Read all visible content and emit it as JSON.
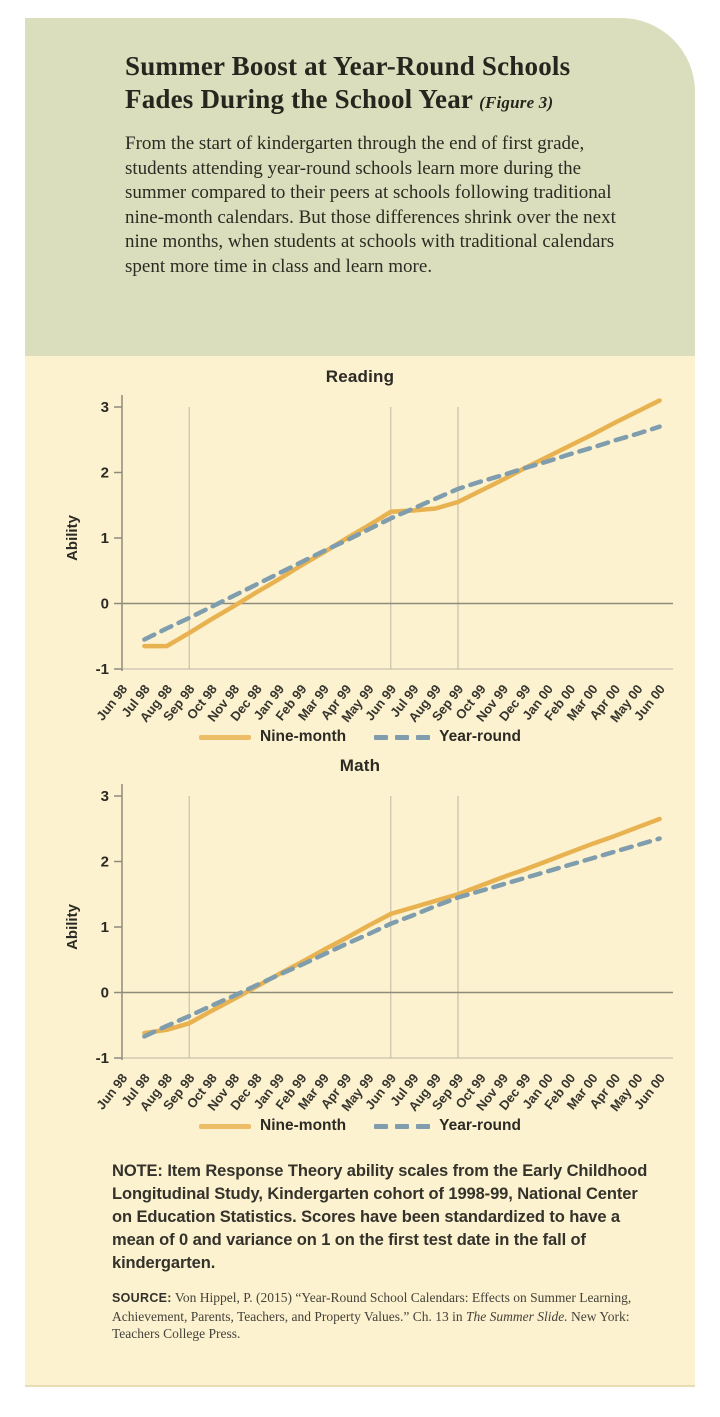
{
  "header": {
    "title": "Summer Boost at Year-Round Schools Fades During the School Year",
    "figure_tag": "(Figure 3)",
    "description": "From the start of kindergarten through the end of first grade, students attending year-round schools learn more during the summer compared to their peers at schools following traditional nine-month calendars. But those differences shrink over the next nine months, when students at schools with traditional calendars spent more time in class and learn more."
  },
  "chart_data": [
    {
      "type": "line",
      "title": "Reading",
      "ylabel": "Ability",
      "ylim": [
        -1,
        3
      ],
      "yticks": [
        3,
        2,
        1,
        0,
        -1
      ],
      "grid": "vertical-at-term-boundaries",
      "gridlines": [
        "Sep 98",
        "Jun 99",
        "Sep 99"
      ],
      "zero_line": true,
      "legend_position": "bottom",
      "categories": [
        "Jun 98",
        "Jul 98",
        "Aug 98",
        "Sep 98",
        "Oct 98",
        "Nov 98",
        "Dec 98",
        "Jan 99",
        "Feb 99",
        "Mar 99",
        "Apr 99",
        "May 99",
        "Jun 99",
        "Jul 99",
        "Aug 99",
        "Sep 99",
        "Oct 99",
        "Nov 99",
        "Dec 99",
        "Jan 00",
        "Feb 00",
        "Mar 00",
        "Apr 00",
        "May 00",
        "Jun 00"
      ],
      "series": [
        {
          "name": "Nine-month",
          "style": "solid",
          "color": "#e9b251",
          "values": [
            null,
            -0.65,
            -0.65,
            -0.45,
            -0.24,
            -0.04,
            0.17,
            0.37,
            0.58,
            0.78,
            0.99,
            1.19,
            1.4,
            1.42,
            1.45,
            1.55,
            1.72,
            1.89,
            2.07,
            2.24,
            2.41,
            2.58,
            2.76,
            2.93,
            3.1
          ]
        },
        {
          "name": "Year-round",
          "style": "dashed",
          "color": "#7f9dad",
          "values": [
            null,
            -0.55,
            -0.38,
            -0.22,
            -0.05,
            0.12,
            0.29,
            0.46,
            0.63,
            0.8,
            0.96,
            1.13,
            1.3,
            1.45,
            1.6,
            1.75,
            1.86,
            1.96,
            2.07,
            2.17,
            2.28,
            2.38,
            2.49,
            2.59,
            2.7
          ]
        }
      ]
    },
    {
      "type": "line",
      "title": "Math",
      "ylabel": "Ability",
      "ylim": [
        -1,
        3
      ],
      "yticks": [
        3,
        2,
        1,
        0,
        -1
      ],
      "grid": "vertical-at-term-boundaries",
      "gridlines": [
        "Sep 98",
        "Jun 99",
        "Sep 99"
      ],
      "zero_line": true,
      "legend_position": "bottom",
      "categories": [
        "Jun 98",
        "Jul 98",
        "Aug 98",
        "Sep 98",
        "Oct 98",
        "Nov 98",
        "Dec 98",
        "Jan 99",
        "Feb 99",
        "Mar 99",
        "Apr 99",
        "May 99",
        "Jun 99",
        "Jul 99",
        "Aug 99",
        "Sep 99",
        "Oct 99",
        "Nov 99",
        "Dec 99",
        "Jan 00",
        "Feb 00",
        "Mar 00",
        "Apr 00",
        "May 00",
        "Jun 00"
      ],
      "series": [
        {
          "name": "Nine-month",
          "style": "solid",
          "color": "#e9b251",
          "values": [
            null,
            -0.62,
            -0.57,
            -0.47,
            -0.28,
            -0.1,
            0.09,
            0.28,
            0.46,
            0.65,
            0.83,
            1.02,
            1.2,
            1.3,
            1.4,
            1.5,
            1.63,
            1.76,
            1.88,
            2.01,
            2.14,
            2.27,
            2.39,
            2.52,
            2.65
          ]
        },
        {
          "name": "Year-round",
          "style": "dashed",
          "color": "#7f9dad",
          "values": [
            null,
            -0.67,
            -0.51,
            -0.36,
            -0.2,
            -0.05,
            0.11,
            0.27,
            0.42,
            0.58,
            0.74,
            0.89,
            1.05,
            1.18,
            1.32,
            1.45,
            1.55,
            1.65,
            1.75,
            1.85,
            1.95,
            2.05,
            2.15,
            2.25,
            2.35
          ]
        }
      ]
    }
  ],
  "note": {
    "text": "NOTE: Item Response Theory ability scales from the Early Childhood Longitudinal Study, Kindergarten cohort of 1998-99, National Center on Education Statistics. Scores have been standardized to have a mean of 0 and variance on 1 on the first test date in the fall of kindergarten."
  },
  "source": {
    "label": "SOURCE:",
    "text_1": " Von Hippel, P. (2015) “Year-Round School Calendars: Effects on Summer Learning, Achievement, Parents, Teachers, and Property Values.” Ch. 13 in ",
    "italic": "The Summer Slide.",
    "text_2": " New York: Teachers College Press."
  },
  "colors": {
    "header_bg": "#dbdebc",
    "body_bg": "#fdf2cf",
    "nine_month": "#e9b251",
    "year_round": "#7f9dad",
    "axis": "#8e8b7d",
    "grid": "#bcb7a4",
    "text": "#2b2a24"
  }
}
